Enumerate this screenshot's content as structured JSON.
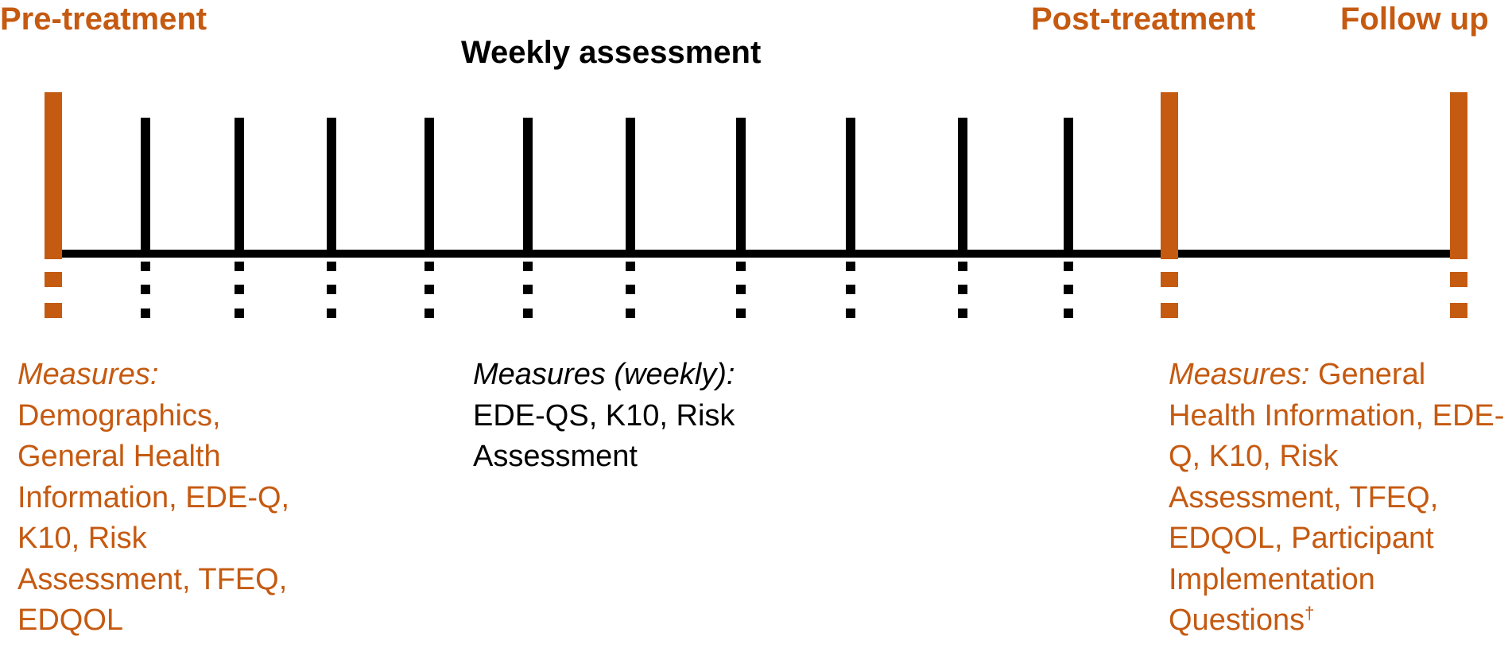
{
  "header": {
    "pre_treatment": "Pre-treatment",
    "weekly_assessment": "Weekly assessment",
    "post_treatment": "Post-treatment",
    "follow_up": "Follow up"
  },
  "measures": [
    {
      "label": "Measures:",
      "text": "Demographics, General Health Information, EDE-Q, K10, Risk Assessment, TFEQ, EDQOL"
    },
    {
      "label": "Measures (weekly):",
      "text": "EDE-QS, K10, Risk Assessment"
    },
    {
      "label": "Measures:",
      "text": "General Health Information, EDE-Q, K10, Risk Assessment, TFEQ, EDQOL, Participant Implementation Questions",
      "footnote_mark": "†"
    }
  ]
}
